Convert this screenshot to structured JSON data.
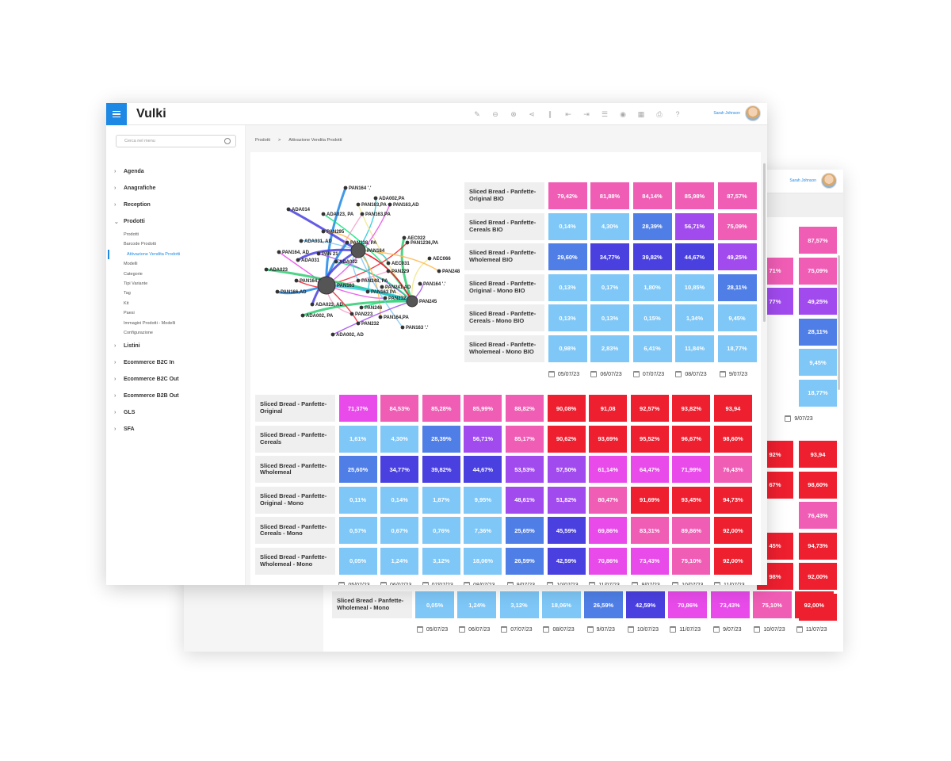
{
  "app": {
    "title": "Vulki",
    "user_name": "Sarah Johnson"
  },
  "colors": {
    "accent": "#1e88e5",
    "light_blue": "#7ec7f7",
    "mid_blue": "#4f7fe6",
    "indigo": "#4a40e0",
    "purple": "#a14bef",
    "magenta": "#e84bea",
    "pink": "#f05db5",
    "red": "#ee1f2f"
  },
  "toolbar_icons": [
    "edit-icon",
    "minus-circle-icon",
    "close-circle-icon",
    "share-icon",
    "attachment-icon",
    "export-icon",
    "import-icon",
    "list-icon",
    "eye-icon",
    "calendar-icon",
    "print-icon",
    "help-icon"
  ],
  "sidebar": {
    "search_placeholder": "Cerca nel menu",
    "items": [
      {
        "label": "Agenda"
      },
      {
        "label": "Anagrafiche"
      },
      {
        "label": "Reception"
      },
      {
        "label": "Prodotti"
      }
    ],
    "subitems": [
      "Prodotti",
      "Barcode Prodotti",
      "Attivazione Vendita Prodotti",
      "Modelli",
      "Categorie",
      "Tipi Variante",
      "Tag",
      "Kit",
      "Paesi",
      "Immagini Prodotti - Modelli",
      "Configurazione"
    ],
    "items_after": [
      {
        "label": "Listini"
      },
      {
        "label": "Ecommerce B2C In"
      },
      {
        "label": "Ecommerce B2C Out"
      },
      {
        "label": "Ecommerce B2B Out"
      },
      {
        "label": "GLS"
      },
      {
        "label": "SFA"
      }
    ]
  },
  "breadcrumb": {
    "root": "Prodotti",
    "separator": ">",
    "current": "Attivazione Vendita Prodotti"
  },
  "network": {
    "hubs": [
      "PAN163",
      "PAN164",
      "PAN245"
    ],
    "nodes": [
      "PAN164 '.'",
      "ADA002,PA",
      "PAN163,PA",
      "PAN163,AD",
      "ADA014",
      "ADA023, PA",
      "PAN163,PA",
      "PAN295",
      "AEC022",
      "PAN1236,PA",
      "ADA031, AD",
      "PAN 21",
      "PAN238, PA",
      "AEC031",
      "AEC066",
      "PAN164, AD",
      "ADA031",
      "ADA002",
      "PAN229",
      "PAN248",
      "ADA023",
      "PAN164,PA",
      "PAN248, PA",
      "PAN164 '.'",
      "PAN166,AD",
      "PAN163 PA",
      "PAN241 AD",
      "PAN212",
      "ADA023, AD",
      "PAN246",
      "PAN223",
      "PAN164,PA",
      "ADA002, PA",
      "PAN232",
      "PAN163 '.'",
      "ADA002, AD"
    ]
  },
  "chart_top": {
    "rows": [
      {
        "label": "Sliced Bread - Panfette-Original BIO",
        "values": [
          "79,42%",
          "81,88%",
          "84,14%",
          "85,98%",
          "87,57%"
        ]
      },
      {
        "label": "Sliced Bread - Panfette-Cereals BIO",
        "values": [
          "0,14%",
          "4,30%",
          "28,39%",
          "56,71%",
          "75,09%"
        ]
      },
      {
        "label": "Sliced Bread - Panfette-Wholemeal BIO",
        "values": [
          "29,60%",
          "34,77%",
          "39,82%",
          "44,67%",
          "49,25%"
        ]
      },
      {
        "label": "Sliced Bread - Panfette-Original - Mono BIO",
        "values": [
          "0,13%",
          "0,17%",
          "1,80%",
          "10,85%",
          "28,11%"
        ]
      },
      {
        "label": "Sliced Bread - Panfette-Cereals - Mono BIO",
        "values": [
          "0,13%",
          "0,13%",
          "0,15%",
          "1,34%",
          "9,45%"
        ]
      },
      {
        "label": "Sliced Bread - Panfette-Wholemeal - Mono BIO",
        "values": [
          "0,98%",
          "2,83%",
          "6,41%",
          "11,84%",
          "18,77%"
        ]
      }
    ],
    "dates": [
      "05/07/23",
      "06/07/23",
      "07/07/23",
      "08/07/23",
      "9/07/23"
    ]
  },
  "chart_bottom": {
    "rows": [
      {
        "label": "Sliced Bread - Panfette-Original",
        "values": [
          "71,37%",
          "84,53%",
          "85,28%",
          "85,99%",
          "88,82%",
          "90,08%",
          "91,08",
          "92,57%",
          "93,82%",
          "93,94"
        ]
      },
      {
        "label": "Sliced Bread - Panfette-Cereals",
        "values": [
          "1,61%",
          "4,30%",
          "28,39%",
          "56,71%",
          "85,17%",
          "90,62%",
          "93,69%",
          "95,52%",
          "96,67%",
          "98,60%"
        ]
      },
      {
        "label": "Sliced Bread - Panfette-Wholemeal",
        "values": [
          "25,60%",
          "34,77%",
          "39,82%",
          "44,67%",
          "53,53%",
          "57,50%",
          "61,14%",
          "64,47%",
          "71,99%",
          "76,43%"
        ]
      },
      {
        "label": "Sliced Bread - Panfette-Original - Mono",
        "values": [
          "0,11%",
          "0,14%",
          "1,87%",
          "9,95%",
          "48,61%",
          "51,82%",
          "80,47%",
          "91,69%",
          "93,45%",
          "94,73%"
        ]
      },
      {
        "label": "Sliced Bread - Panfette-Cereals - Mono",
        "values": [
          "0,57%",
          "0,67%",
          "0,76%",
          "7,36%",
          "25,65%",
          "45,59%",
          "69,86%",
          "83,31%",
          "89,86%",
          "92,00%"
        ]
      },
      {
        "label": "Sliced Bread - Panfette-Wholemeal - Mono",
        "values": [
          "0,05%",
          "1,24%",
          "3,12%",
          "18,06%",
          "26,59%",
          "42,59%",
          "70,86%",
          "73,43%",
          "75,10%",
          "92,00%"
        ]
      }
    ],
    "dates": [
      "05/07/23",
      "06/07/23",
      "07/07/23",
      "08/07/23",
      "9/07/23",
      "10/07/23",
      "11/07/23",
      "9/07/23",
      "10/07/23",
      "11/07/23"
    ]
  },
  "back_window": {
    "user_name": "Sarah Johnson",
    "column_a": [
      "87,57%",
      "75,09%",
      "49,25%",
      "28,11%",
      "9,45%",
      "18,77%"
    ],
    "column_a_partial": [
      "",
      "71%",
      "77%",
      "",
      "",
      ""
    ],
    "column_b_partial": [
      "92%",
      "67%",
      "",
      "45%",
      "98%",
      ""
    ],
    "column_b": [
      "93,94",
      "98,60%",
      "76,43%",
      "94,73%",
      "92,00%",
      "92,00%"
    ],
    "dates_a": [
      "9/07/23"
    ],
    "last_row": {
      "label": "Sliced Bread - Panfette-Wholemeal - Mono",
      "values": [
        "0,05%",
        "1,24%",
        "3,12%",
        "18,06%",
        "26,59%",
        "42,59%",
        "70,86%",
        "73,43%",
        "75,10%",
        "92,00%"
      ]
    },
    "dates": [
      "05/07/23",
      "06/07/23",
      "07/07/23",
      "08/07/23",
      "9/07/23",
      "10/07/23",
      "11/07/23",
      "9/07/23",
      "10/07/23",
      "11/07/23"
    ]
  }
}
